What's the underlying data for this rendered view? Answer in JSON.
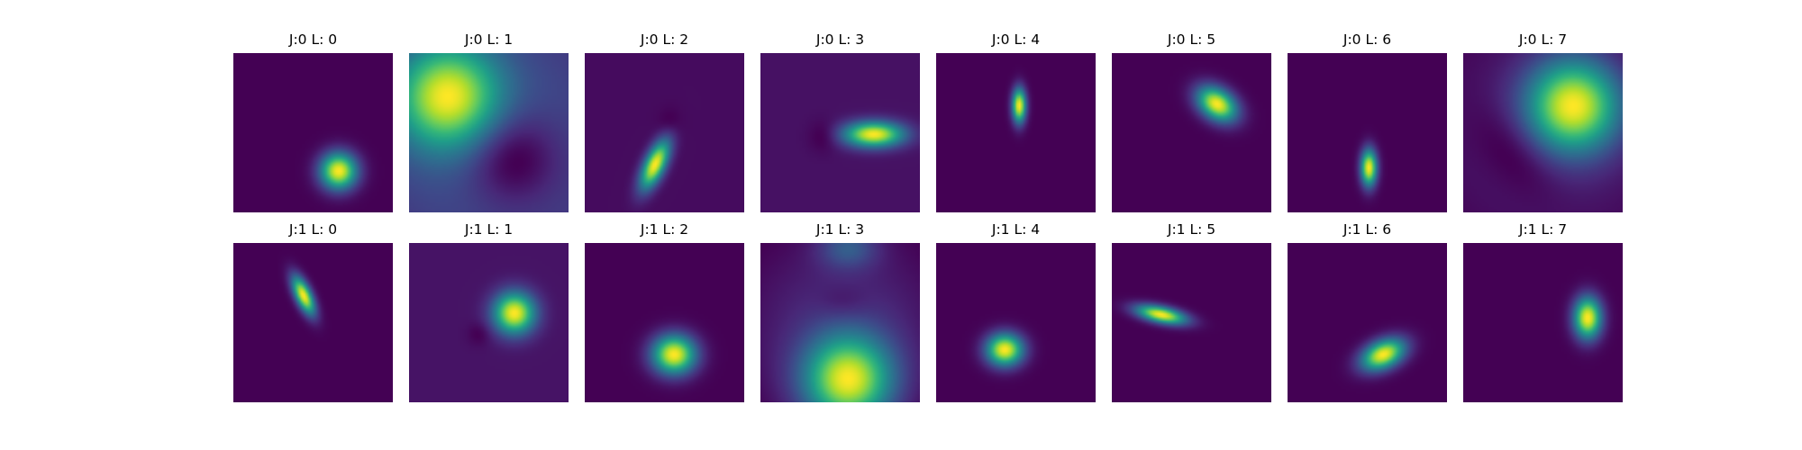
{
  "chart_data": {
    "type": "heatmap",
    "colormap": "viridis",
    "colormap_stops": [
      "#440154",
      "#482878",
      "#3e4989",
      "#31688e",
      "#26828e",
      "#1f9e89",
      "#35b779",
      "#6ece58",
      "#b5de2b",
      "#fde725"
    ],
    "axes_visible": false,
    "panels": [
      {
        "title": "J:0 L: 0",
        "blobs": [
          {
            "x": 0.66,
            "y": 0.74,
            "sx": 0.08,
            "sy": 0.08,
            "angle": 0,
            "amp": 1.0
          }
        ]
      },
      {
        "title": "J:0 L: 1",
        "blobs": [
          {
            "x": 0.24,
            "y": 0.27,
            "sx": 0.22,
            "sy": 0.22,
            "angle": 0,
            "amp": 1.0
          },
          {
            "x": 0.65,
            "y": 0.66,
            "sx": 0.2,
            "sy": 0.2,
            "angle": 0,
            "amp": -0.35
          },
          {
            "x": 0.5,
            "y": 0.52,
            "sx": 0.95,
            "sy": 0.95,
            "angle": 0,
            "amp": 0.42
          }
        ],
        "base": 0.0
      },
      {
        "title": "J:0 L: 2",
        "blobs": [
          {
            "x": 0.44,
            "y": 0.7,
            "sx": 0.045,
            "sy": 0.115,
            "angle": 25,
            "amp": 1.0
          },
          {
            "x": 0.54,
            "y": 0.44,
            "sx": 0.05,
            "sy": 0.06,
            "angle": 0,
            "amp": -0.06
          }
        ],
        "base": 0.05
      },
      {
        "title": "J:0 L: 3",
        "blobs": [
          {
            "x": 0.71,
            "y": 0.51,
            "sx": 0.13,
            "sy": 0.055,
            "angle": 0,
            "amp": 1.0
          },
          {
            "x": 0.4,
            "y": 0.52,
            "sx": 0.065,
            "sy": 0.065,
            "angle": 0,
            "amp": -0.09
          }
        ],
        "base": 0.1
      },
      {
        "title": "J:0 L: 4",
        "blobs": [
          {
            "x": 0.52,
            "y": 0.33,
            "sx": 0.03,
            "sy": 0.075,
            "angle": 0,
            "amp": 1.0
          }
        ]
      },
      {
        "title": "J:0 L: 5",
        "blobs": [
          {
            "x": 0.66,
            "y": 0.32,
            "sx": 0.095,
            "sy": 0.065,
            "angle": 35,
            "amp": 1.0
          }
        ]
      },
      {
        "title": "J:0 L: 6",
        "blobs": [
          {
            "x": 0.51,
            "y": 0.72,
            "sx": 0.035,
            "sy": 0.08,
            "angle": 0,
            "amp": 1.0
          }
        ]
      },
      {
        "title": "J:0 L: 7",
        "blobs": [
          {
            "x": 0.69,
            "y": 0.33,
            "sx": 0.2,
            "sy": 0.2,
            "angle": 0,
            "amp": 1.0
          },
          {
            "x": 0.33,
            "y": 0.62,
            "sx": 0.13,
            "sy": 0.22,
            "angle": -40,
            "amp": -0.12
          },
          {
            "x": 0.55,
            "y": 0.5,
            "sx": 0.8,
            "sy": 0.8,
            "angle": 0,
            "amp": 0.2
          }
        ]
      },
      {
        "title": "J:1 L: 0",
        "blobs": [
          {
            "x": 0.44,
            "y": 0.33,
            "sx": 0.035,
            "sy": 0.09,
            "angle": -25,
            "amp": 1.0
          }
        ]
      },
      {
        "title": "J:1 L: 1",
        "blobs": [
          {
            "x": 0.66,
            "y": 0.44,
            "sx": 0.09,
            "sy": 0.09,
            "angle": 0,
            "amp": 1.0
          },
          {
            "x": 0.44,
            "y": 0.57,
            "sx": 0.05,
            "sy": 0.05,
            "angle": 0,
            "amp": -0.07
          }
        ],
        "base": 0.05
      },
      {
        "title": "J:1 L: 2",
        "blobs": [
          {
            "x": 0.56,
            "y": 0.7,
            "sx": 0.095,
            "sy": 0.085,
            "angle": 0,
            "amp": 1.0
          }
        ]
      },
      {
        "title": "J:1 L: 3",
        "blobs": [
          {
            "x": 0.55,
            "y": 0.86,
            "sx": 0.19,
            "sy": 0.19,
            "angle": 0,
            "amp": 1.0
          },
          {
            "x": 0.55,
            "y": 0.03,
            "sx": 0.13,
            "sy": 0.09,
            "angle": 0,
            "amp": 0.28
          },
          {
            "x": 0.52,
            "y": 0.37,
            "sx": 0.11,
            "sy": 0.07,
            "angle": 0,
            "amp": -0.07
          },
          {
            "x": 0.52,
            "y": 0.55,
            "sx": 0.5,
            "sy": 0.5,
            "angle": 0,
            "amp": 0.22
          }
        ],
        "base": 0.1
      },
      {
        "title": "J:1 L: 4",
        "blobs": [
          {
            "x": 0.43,
            "y": 0.67,
            "sx": 0.08,
            "sy": 0.07,
            "angle": 0,
            "amp": 1.0
          }
        ]
      },
      {
        "title": "J:1 L: 5",
        "blobs": [
          {
            "x": 0.31,
            "y": 0.45,
            "sx": 0.11,
            "sy": 0.035,
            "angle": 12,
            "amp": 1.0
          }
        ]
      },
      {
        "title": "J:1 L: 6",
        "blobs": [
          {
            "x": 0.6,
            "y": 0.7,
            "sx": 0.1,
            "sy": 0.06,
            "angle": -25,
            "amp": 1.0
          }
        ]
      },
      {
        "title": "J:1 L: 7",
        "blobs": [
          {
            "x": 0.78,
            "y": 0.47,
            "sx": 0.06,
            "sy": 0.09,
            "angle": 0,
            "amp": 1.0
          }
        ]
      }
    ]
  }
}
